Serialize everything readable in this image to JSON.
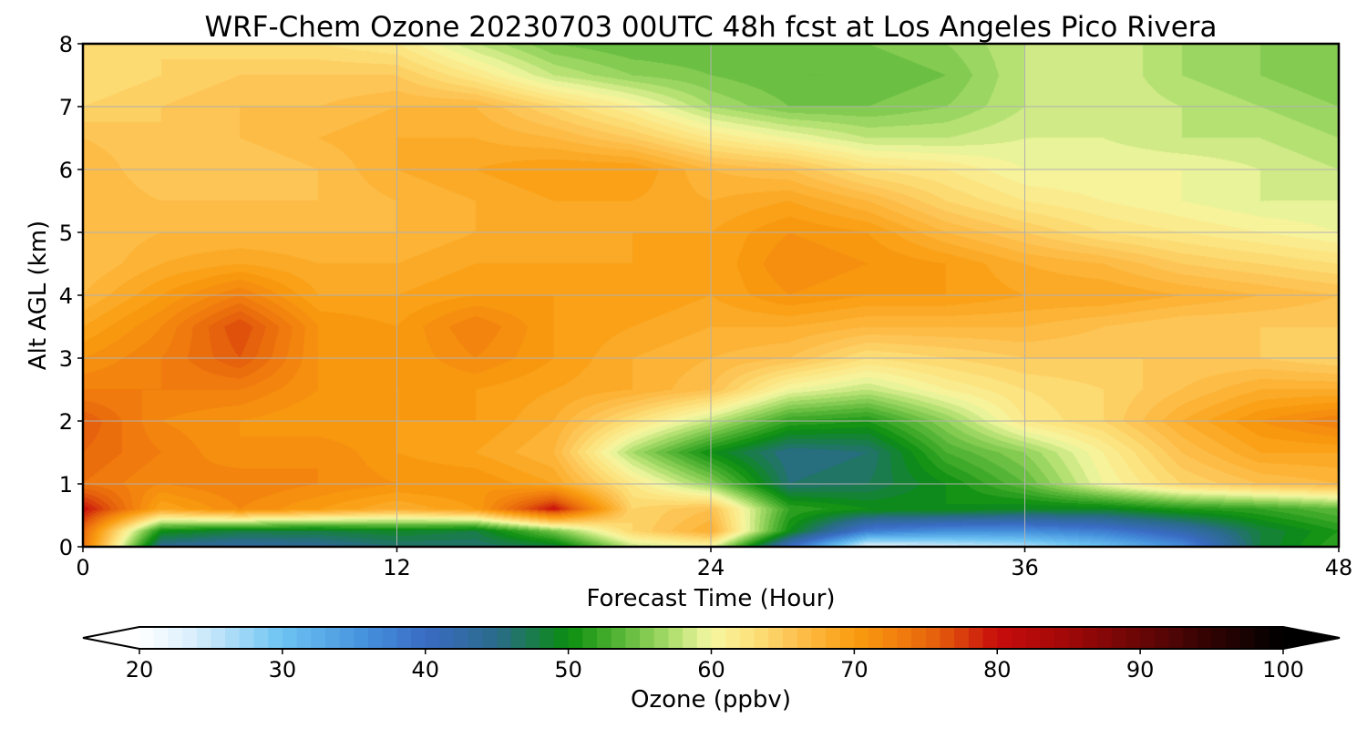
{
  "chart_data": {
    "type": "heatmap",
    "title": "WRF-Chem Ozone  20230703 00UTC 48h fcst at Los Angeles Pico Rivera",
    "xlabel": "Forecast Time (Hour)",
    "ylabel": "Alt AGL (km)",
    "xlim": [
      0,
      48
    ],
    "ylim": [
      0,
      8
    ],
    "xticks": [
      "0",
      "12",
      "24",
      "36",
      "48"
    ],
    "yticks": [
      "0",
      "1",
      "2",
      "3",
      "4",
      "5",
      "6",
      "7",
      "8"
    ],
    "grid": true,
    "x_hours": [
      0,
      3,
      6,
      9,
      12,
      15,
      18,
      21,
      24,
      27,
      30,
      33,
      36,
      39,
      42,
      45,
      48
    ],
    "y_km": [
      0,
      0.25,
      0.6,
      1,
      1.5,
      2,
      2.5,
      3,
      3.5,
      4,
      4.5,
      5,
      5.5,
      6,
      6.5,
      7,
      7.5,
      8
    ],
    "z_ppbv": [
      [
        74,
        44,
        43,
        44,
        46,
        46,
        48,
        58,
        60,
        40,
        22,
        24,
        26,
        30,
        36,
        48,
        52
      ],
      [
        75,
        50,
        48,
        48,
        49,
        48,
        55,
        64,
        68,
        50,
        38,
        36,
        36,
        38,
        42,
        48,
        51
      ],
      [
        80,
        69,
        72,
        70,
        68,
        70,
        80,
        64,
        66,
        52,
        50,
        50,
        49,
        49,
        51,
        52,
        54
      ],
      [
        74,
        72,
        73,
        72,
        71,
        71,
        69,
        62,
        56,
        46,
        47,
        50,
        54,
        60,
        64,
        66,
        67
      ],
      [
        75,
        73,
        71,
        72,
        70,
        69,
        67,
        57,
        50,
        45,
        46,
        53,
        56,
        61,
        66,
        69,
        69
      ],
      [
        76,
        72,
        71,
        70,
        70,
        70,
        68,
        63,
        58,
        52,
        51,
        56,
        62,
        64,
        68,
        71,
        73
      ],
      [
        73,
        73,
        73,
        71,
        70,
        70,
        69,
        68,
        66,
        60,
        58,
        61,
        63,
        64,
        66,
        68,
        68
      ],
      [
        71,
        73,
        76,
        71,
        70,
        72,
        70,
        68,
        67,
        66,
        63,
        64,
        65,
        65,
        65,
        65,
        64
      ],
      [
        69,
        72,
        77,
        71,
        70,
        73,
        70,
        69,
        68,
        68,
        67,
        67,
        67,
        66,
        65,
        65,
        65
      ],
      [
        67,
        70,
        73,
        69,
        69,
        70,
        70,
        70,
        69,
        71,
        70,
        70,
        69,
        69,
        68,
        67,
        66
      ],
      [
        66,
        68,
        69,
        68,
        68,
        69,
        69,
        69,
        69,
        72,
        71,
        70,
        68,
        67,
        65,
        64,
        63
      ],
      [
        66,
        67,
        67,
        67,
        67,
        68,
        68,
        69,
        69,
        71,
        70,
        67,
        65,
        63,
        62,
        61,
        60
      ],
      [
        67,
        66,
        66,
        66,
        67,
        68,
        69,
        69,
        68,
        69,
        67,
        64,
        62,
        61,
        60,
        59,
        59
      ],
      [
        67,
        65,
        65,
        66,
        68,
        69,
        70,
        70,
        67,
        66,
        63,
        62,
        60,
        60,
        60,
        59,
        58
      ],
      [
        66,
        65,
        66,
        67,
        68,
        68,
        67,
        65,
        62,
        60,
        58,
        58,
        59,
        59,
        58,
        58,
        57
      ],
      [
        64,
        65,
        66,
        66,
        67,
        67,
        64,
        61,
        57,
        55,
        55,
        56,
        58,
        59,
        58,
        57,
        56
      ],
      [
        63,
        64,
        65,
        65,
        65,
        62,
        58,
        56,
        55,
        54,
        54,
        55,
        58,
        59,
        57,
        56,
        55
      ],
      [
        64,
        64,
        63,
        63,
        62,
        58,
        55,
        54,
        54,
        54,
        55,
        56,
        58,
        59,
        57,
        56,
        55
      ]
    ],
    "colorbar": {
      "label": "Ozone  (ppbv)",
      "min": 20,
      "max": 100,
      "step": 1,
      "extend": "both",
      "ticks": [
        "20",
        "30",
        "40",
        "50",
        "60",
        "70",
        "80",
        "90",
        "100"
      ],
      "color_stops": [
        [
          20,
          "#ffffff"
        ],
        [
          24,
          "#d6eefb"
        ],
        [
          30,
          "#6cc3f2"
        ],
        [
          36,
          "#4490dc"
        ],
        [
          40,
          "#3a6bc4"
        ],
        [
          45,
          "#2a6b8a"
        ],
        [
          50,
          "#0a8d0f"
        ],
        [
          54,
          "#5fb93a"
        ],
        [
          57,
          "#a8dc6a"
        ],
        [
          60,
          "#f6f7a2"
        ],
        [
          63,
          "#fde07a"
        ],
        [
          66,
          "#fdc04e"
        ],
        [
          70,
          "#f99d0f"
        ],
        [
          73,
          "#f2800e"
        ],
        [
          76,
          "#e35c0c"
        ],
        [
          80,
          "#c80c0c"
        ],
        [
          85,
          "#a00808"
        ],
        [
          90,
          "#6a0606"
        ],
        [
          95,
          "#300303"
        ],
        [
          100,
          "#000000"
        ]
      ]
    }
  }
}
